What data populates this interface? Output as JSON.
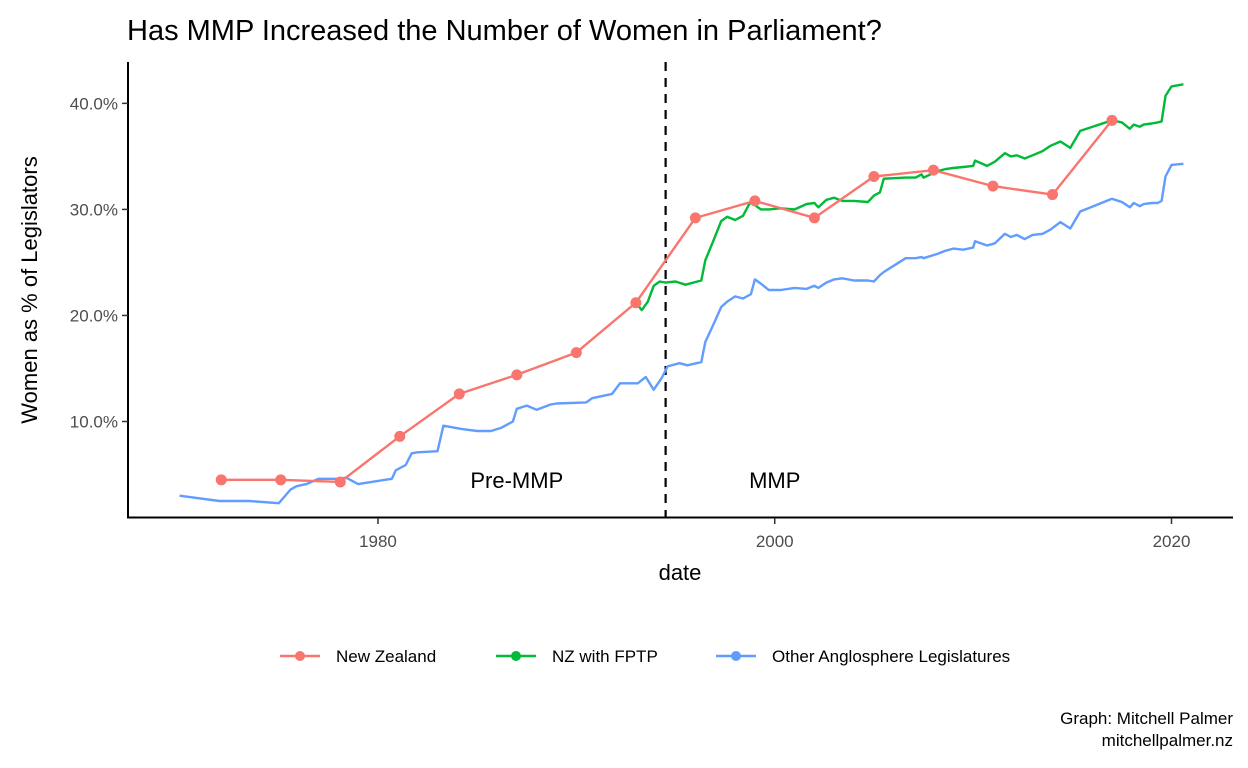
{
  "chart_data": {
    "type": "line",
    "title": "Has MMP Increased the Number of Women in Parliament?",
    "xlabel": "date",
    "ylabel": "Women as % of Legislators",
    "xlim": [
      1967.4,
      2023.1
    ],
    "ylim": [
      0.9,
      43.9
    ],
    "x_ticks": [
      1980,
      2000,
      2020
    ],
    "x_tick_labels": [
      "1980",
      "2000",
      "2020"
    ],
    "y_ticks": [
      10,
      20,
      30,
      40
    ],
    "y_tick_labels": [
      "10.0%",
      "20.0%",
      "30.0%",
      "40.0%"
    ],
    "grid": false,
    "legend_position": "bottom",
    "vline": {
      "x": 1994.5,
      "style": "dashed",
      "color": "#000000"
    },
    "annotations": [
      {
        "text": "Pre-MMP",
        "x": 1987.0,
        "y": 4.5
      },
      {
        "text": "MMP",
        "x": 2000.0,
        "y": 4.5
      }
    ],
    "caption": [
      "Graph: Mitchell Palmer",
      "mitchellpalmer.nz"
    ],
    "series": [
      {
        "name": "New Zealand",
        "color": "#F8766D",
        "markers": true,
        "x": [
          1972.1,
          1975.1,
          1978.1,
          1981.1,
          1984.1,
          1987.0,
          1990.0,
          1993.0,
          1996.0,
          1999.0,
          2002.0,
          2005.0,
          2008.0,
          2011.0,
          2014.0,
          2017.0
        ],
        "y": [
          4.5,
          4.5,
          4.3,
          8.6,
          12.6,
          14.4,
          16.5,
          21.2,
          29.2,
          30.8,
          29.2,
          33.1,
          33.7,
          32.2,
          31.4,
          38.4
        ]
      },
      {
        "name": "NZ with FPTP",
        "color": "#00BA38",
        "markers": false,
        "x": [
          1993.0,
          1993.3,
          1993.6,
          1993.9,
          1994.2,
          1994.5,
          1995.0,
          1995.5,
          1996.3,
          1996.5,
          1996.9,
          1997.3,
          1997.6,
          1998.0,
          1998.4,
          1998.8,
          1999.0,
          1999.3,
          1999.7,
          2000.3,
          2001.0,
          2001.6,
          2002.0,
          2002.2,
          2002.6,
          2003.0,
          2003.4,
          2004.0,
          2004.7,
          2005.0,
          2005.3,
          2005.5,
          2006.6,
          2007.1,
          2007.4,
          2007.5,
          2008.2,
          2008.6,
          2009.0,
          2009.5,
          2010.0,
          2010.1,
          2010.7,
          2011.1,
          2011.6,
          2011.9,
          2012.2,
          2012.6,
          2013.0,
          2013.5,
          2013.9,
          2014.4,
          2014.9,
          2015.4,
          2017.0,
          2017.5,
          2017.9,
          2018.1,
          2018.4,
          2018.6,
          2019.0,
          2019.3,
          2019.5,
          2019.7,
          2020.0,
          2020.6
        ],
        "y": [
          21.2,
          20.5,
          21.3,
          22.8,
          23.2,
          23.1,
          23.2,
          22.9,
          23.3,
          25.2,
          27.0,
          28.9,
          29.3,
          29.0,
          29.4,
          30.8,
          30.4,
          30.0,
          30.0,
          30.1,
          30.0,
          30.5,
          30.6,
          30.2,
          30.9,
          31.1,
          30.8,
          30.8,
          30.7,
          31.3,
          31.6,
          32.9,
          33.0,
          33.0,
          33.3,
          33.0,
          33.6,
          33.8,
          33.9,
          34.0,
          34.1,
          34.6,
          34.1,
          34.5,
          35.3,
          35.0,
          35.1,
          34.8,
          35.1,
          35.5,
          36.0,
          36.4,
          35.8,
          37.4,
          38.4,
          38.2,
          37.6,
          38.0,
          37.8,
          38.0,
          38.1,
          38.2,
          38.3,
          40.7,
          41.6,
          41.8
        ]
      },
      {
        "name": "Other Anglosphere Legislatures",
        "color": "#619CFF",
        "markers": false,
        "x": [
          1970.0,
          1972.0,
          1973.5,
          1975.0,
          1975.6,
          1975.9,
          1976.4,
          1977.0,
          1978.0,
          1978.4,
          1979.0,
          1980.0,
          1980.7,
          1980.9,
          1981.4,
          1981.7,
          1982.0,
          1983.0,
          1983.3,
          1984.2,
          1985.0,
          1985.7,
          1986.2,
          1986.8,
          1987.0,
          1987.5,
          1988.0,
          1988.7,
          1989.0,
          1990.5,
          1990.8,
          1991.8,
          1992.2,
          1993.1,
          1993.5,
          1993.9,
          1994.3,
          1994.6,
          1995.2,
          1995.6,
          1996.3,
          1996.5,
          1996.9,
          1997.3,
          1997.6,
          1998.0,
          1998.4,
          1998.8,
          1999.0,
          1999.3,
          1999.7,
          2000.3,
          2001.0,
          2001.6,
          2002.0,
          2002.2,
          2002.6,
          2003.0,
          2003.4,
          2004.0,
          2004.7,
          2005.0,
          2005.3,
          2005.5,
          2006.6,
          2007.1,
          2007.4,
          2007.5,
          2008.2,
          2008.6,
          2009.0,
          2009.5,
          2010.0,
          2010.1,
          2010.7,
          2011.1,
          2011.6,
          2011.9,
          2012.2,
          2012.6,
          2013.0,
          2013.5,
          2013.9,
          2014.4,
          2014.9,
          2015.4,
          2017.0,
          2017.5,
          2017.9,
          2018.1,
          2018.4,
          2018.6,
          2019.0,
          2019.3,
          2019.5,
          2019.7,
          2020.0,
          2020.6
        ],
        "y": [
          3.0,
          2.5,
          2.5,
          2.3,
          3.6,
          3.9,
          4.1,
          4.6,
          4.6,
          4.7,
          4.1,
          4.4,
          4.6,
          5.4,
          5.9,
          7.0,
          7.1,
          7.2,
          9.6,
          9.3,
          9.1,
          9.1,
          9.4,
          10.0,
          11.2,
          11.5,
          11.1,
          11.6,
          11.7,
          11.8,
          12.2,
          12.6,
          13.6,
          13.6,
          14.2,
          13.0,
          14.1,
          15.2,
          15.5,
          15.3,
          15.6,
          17.5,
          19.1,
          20.8,
          21.3,
          21.8,
          21.6,
          22.0,
          23.4,
          23.0,
          22.4,
          22.4,
          22.6,
          22.5,
          22.8,
          22.6,
          23.1,
          23.4,
          23.5,
          23.3,
          23.3,
          23.2,
          23.8,
          24.1,
          25.4,
          25.4,
          25.5,
          25.4,
          25.8,
          26.1,
          26.3,
          26.2,
          26.4,
          27.0,
          26.6,
          26.8,
          27.7,
          27.4,
          27.6,
          27.2,
          27.6,
          27.7,
          28.1,
          28.8,
          28.2,
          29.8,
          31.0,
          30.7,
          30.2,
          30.6,
          30.3,
          30.5,
          30.6,
          30.6,
          30.8,
          33.1,
          34.2,
          34.3
        ]
      }
    ]
  }
}
